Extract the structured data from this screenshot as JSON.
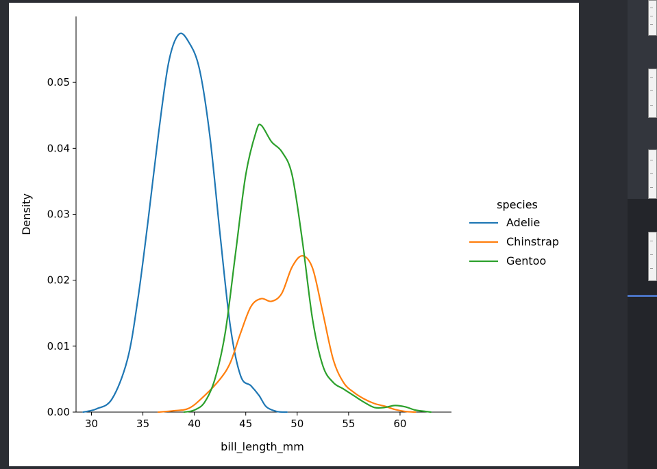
{
  "colors": {
    "background": "#2b2d33",
    "plot_background": "#ffffff",
    "sidebar": "#23252a",
    "active_indicator": "#4a73c4"
  },
  "thumbnails": [
    {
      "name": "figure-thumbnail-1"
    },
    {
      "name": "figure-thumbnail-2"
    },
    {
      "name": "figure-thumbnail-3"
    },
    {
      "name": "figure-thumbnail-4",
      "selected": true
    }
  ],
  "chart_data": {
    "type": "line",
    "xlabel": "bill_length_mm",
    "ylabel": "Density",
    "xlim": [
      28.5,
      65.0
    ],
    "ylim": [
      0.0,
      0.06
    ],
    "xticks": [
      "30",
      "35",
      "40",
      "45",
      "50",
      "55",
      "60"
    ],
    "yticks": [
      "0.00",
      "0.01",
      "0.02",
      "0.03",
      "0.04",
      "0.05"
    ],
    "legend": {
      "title": "species",
      "placement": "right",
      "entries": [
        "Adelie",
        "Chinstrap",
        "Gentoo"
      ]
    },
    "series": [
      {
        "name": "Adelie",
        "color": "#1f77b4",
        "points": [
          [
            29.2,
            0.0
          ],
          [
            30.5,
            0.0005
          ],
          [
            32,
            0.002
          ],
          [
            33.5,
            0.008
          ],
          [
            34.5,
            0.017
          ],
          [
            35.5,
            0.029
          ],
          [
            36.5,
            0.042
          ],
          [
            37.5,
            0.053
          ],
          [
            38.5,
            0.0573
          ],
          [
            39.5,
            0.056
          ],
          [
            40.5,
            0.052
          ],
          [
            41.5,
            0.042
          ],
          [
            42.5,
            0.027
          ],
          [
            43.5,
            0.013
          ],
          [
            44.5,
            0.0055
          ],
          [
            45.5,
            0.004
          ],
          [
            46.3,
            0.0025
          ],
          [
            47,
            0.0008
          ],
          [
            48,
            0.0001
          ],
          [
            49,
            0.0
          ]
        ]
      },
      {
        "name": "Chinstrap",
        "color": "#ff7f0e",
        "points": [
          [
            36.5,
            0.0
          ],
          [
            38,
            0.0002
          ],
          [
            39.5,
            0.0006
          ],
          [
            41,
            0.0025
          ],
          [
            42.5,
            0.005
          ],
          [
            43.5,
            0.0075
          ],
          [
            44.5,
            0.012
          ],
          [
            45.5,
            0.016
          ],
          [
            46.5,
            0.0172
          ],
          [
            47.5,
            0.0168
          ],
          [
            48.5,
            0.018
          ],
          [
            49.5,
            0.022
          ],
          [
            50.5,
            0.0237
          ],
          [
            51.5,
            0.0218
          ],
          [
            52.5,
            0.015
          ],
          [
            53.5,
            0.008
          ],
          [
            54.5,
            0.0045
          ],
          [
            55.5,
            0.003
          ],
          [
            56.5,
            0.002
          ],
          [
            57.5,
            0.0013
          ],
          [
            58.5,
            0.0009
          ],
          [
            59.5,
            0.0004
          ],
          [
            60.5,
            0.0001
          ],
          [
            61.5,
            0.0
          ]
        ]
      },
      {
        "name": "Gentoo",
        "color": "#2ca02c",
        "points": [
          [
            39,
            0.0
          ],
          [
            40,
            0.0003
          ],
          [
            41,
            0.0015
          ],
          [
            42,
            0.005
          ],
          [
            43,
            0.012
          ],
          [
            44,
            0.024
          ],
          [
            45,
            0.036
          ],
          [
            46,
            0.0425
          ],
          [
            46.5,
            0.0435
          ],
          [
            47.5,
            0.041
          ],
          [
            48.5,
            0.0395
          ],
          [
            49.5,
            0.036
          ],
          [
            50.5,
            0.026
          ],
          [
            51.5,
            0.014
          ],
          [
            52.5,
            0.007
          ],
          [
            53.5,
            0.0045
          ],
          [
            54.5,
            0.0035
          ],
          [
            55.5,
            0.0025
          ],
          [
            56.5,
            0.0015
          ],
          [
            57.5,
            0.0007
          ],
          [
            58.5,
            0.0007
          ],
          [
            59.5,
            0.001
          ],
          [
            60.5,
            0.0008
          ],
          [
            61.5,
            0.0003
          ],
          [
            62.5,
            0.0001
          ],
          [
            63,
            0.0
          ]
        ]
      }
    ]
  }
}
